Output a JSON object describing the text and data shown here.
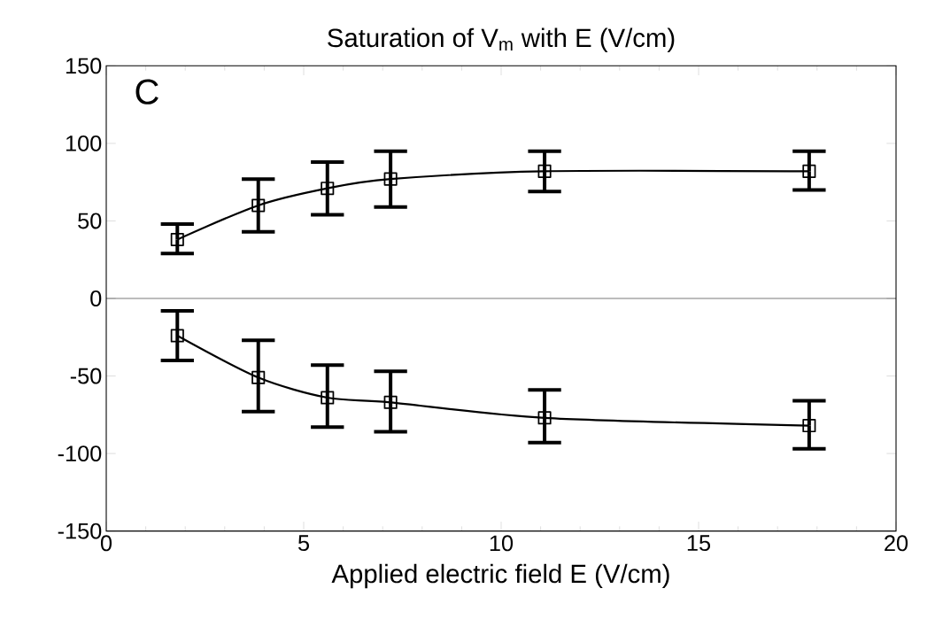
{
  "chart_data": {
    "type": "line",
    "title": "Saturation of V$_{m}$ with E (V/cm)",
    "xlabel": "Applied electric field E  (V/cm)",
    "annotations": [
      "C"
    ],
    "x": [
      1.8,
      3.85,
      5.6,
      7.2,
      11.1,
      17.8
    ],
    "series": [
      {
        "color": "#000000",
        "values": [
          38,
          60,
          71,
          77,
          82,
          82
        ],
        "errors": [
          [
            29,
            48
          ],
          [
            43,
            77
          ],
          [
            54,
            88
          ],
          [
            59,
            95
          ],
          [
            69,
            95
          ],
          [
            70,
            95
          ]
        ]
      },
      {
        "color": "#000000",
        "values": [
          -24,
          -51,
          -64,
          -67,
          -77,
          -82
        ],
        "errors": [
          [
            -40,
            -8
          ],
          [
            -73,
            -27
          ],
          [
            -83,
            -43
          ],
          [
            -86,
            -47
          ],
          [
            -93,
            -59
          ],
          [
            -97,
            -66
          ]
        ]
      }
    ],
    "xlim": [
      0,
      20
    ],
    "ylim": [
      -150,
      150
    ],
    "xticks": [
      0,
      5,
      10,
      15,
      20
    ],
    "yticks": [
      150,
      100,
      50,
      0,
      -50,
      -100,
      -150
    ],
    "ref_lines": [
      {
        "axis": "y",
        "value": 0,
        "color": "#000000"
      }
    ],
    "marker": "square",
    "line_style": "solid",
    "grid": false
  }
}
